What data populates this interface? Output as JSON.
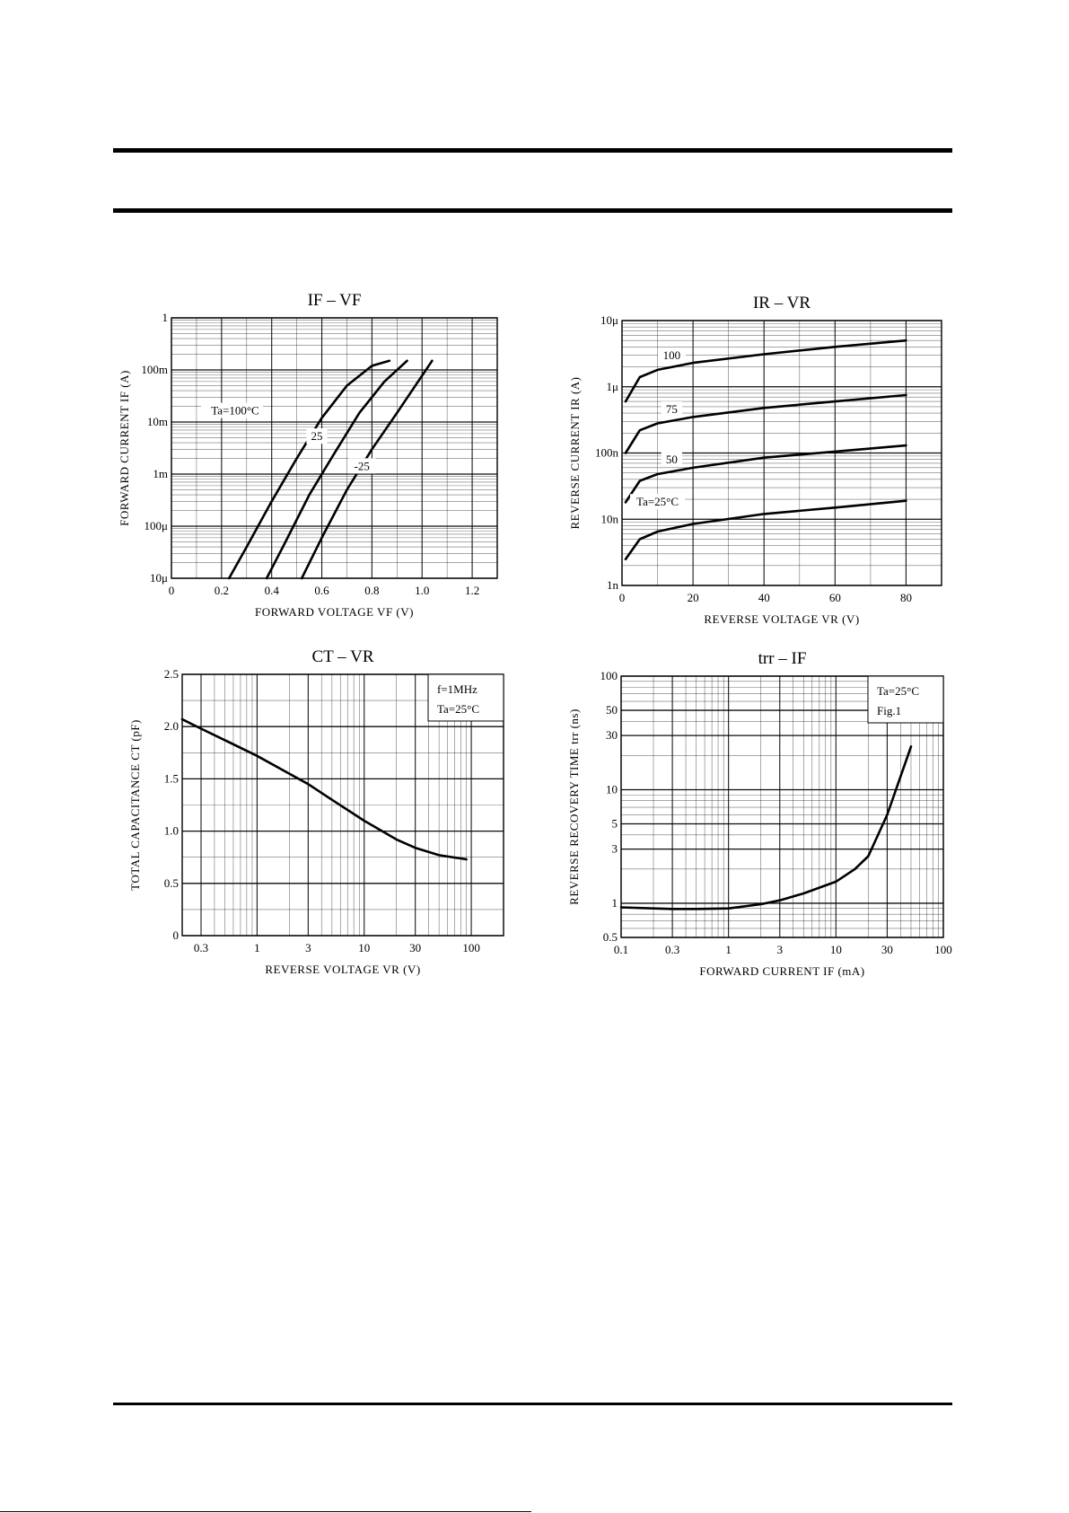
{
  "chart_data": [
    {
      "id": "if-vf",
      "type": "line",
      "title": "IF – VF",
      "xlabel": "FORWARD VOLTAGE VF (V)",
      "ylabel": "FORWARD CURRENT IF (A)",
      "xlim": [
        0,
        1.3
      ],
      "ylim": [
        1e-05,
        1
      ],
      "xscale": "linear",
      "yscale": "log",
      "x_ticks": [
        0,
        0.2,
        0.4,
        0.6,
        0.8,
        1.0,
        1.2
      ],
      "x_tick_labels": [
        "0",
        "0.2",
        "0.4",
        "0.6",
        "0.8",
        "1.0",
        "1.2"
      ],
      "y_ticks": [
        1e-05,
        0.0001,
        0.001,
        0.01,
        0.1,
        1
      ],
      "y_tick_labels": [
        "10μ",
        "100μ",
        "1m",
        "10m",
        "100m",
        "1"
      ],
      "grid": true,
      "series": [
        {
          "name": "Ta=100°C",
          "x": [
            0.23,
            0.3,
            0.4,
            0.5,
            0.6,
            0.7,
            0.8,
            0.87
          ],
          "y": [
            1e-05,
            4e-05,
            0.0003,
            0.002,
            0.012,
            0.05,
            0.12,
            0.15
          ]
        },
        {
          "name": "25",
          "x": [
            0.38,
            0.45,
            0.55,
            0.65,
            0.75,
            0.85,
            0.94
          ],
          "y": [
            1e-05,
            4.5e-05,
            0.0004,
            0.0025,
            0.015,
            0.06,
            0.15
          ]
        },
        {
          "name": "-25",
          "x": [
            0.52,
            0.6,
            0.7,
            0.8,
            0.9,
            1.04
          ],
          "y": [
            1e-05,
            6e-05,
            0.0005,
            0.003,
            0.015,
            0.15
          ]
        }
      ]
    },
    {
      "id": "ir-vr",
      "type": "line",
      "title": "IR – VR",
      "xlabel": "REVERSE VOLTAGE VR (V)",
      "ylabel": "REVERSE CURRENT IR (A)",
      "xlim": [
        0,
        90
      ],
      "ylim": [
        1e-09,
        1e-05
      ],
      "xscale": "linear",
      "yscale": "log",
      "x_ticks": [
        0,
        20,
        40,
        60,
        80
      ],
      "x_tick_labels": [
        "0",
        "20",
        "40",
        "60",
        "80"
      ],
      "y_ticks": [
        1e-09,
        1e-08,
        1e-07,
        1e-06,
        1e-05
      ],
      "y_tick_labels": [
        "1n",
        "10n",
        "100n",
        "1μ",
        "10μ"
      ],
      "grid": true,
      "series": [
        {
          "name": "100",
          "x": [
            1,
            5,
            10,
            20,
            40,
            60,
            80
          ],
          "y": [
            6e-07,
            1.4e-06,
            1.8e-06,
            2.3e-06,
            3.1e-06,
            4e-06,
            5e-06
          ]
        },
        {
          "name": "75",
          "x": [
            1,
            5,
            10,
            20,
            40,
            60,
            80
          ],
          "y": [
            1e-07,
            2.2e-07,
            2.8e-07,
            3.5e-07,
            4.8e-07,
            6e-07,
            7.5e-07
          ]
        },
        {
          "name": "50",
          "x": [
            1,
            5,
            10,
            20,
            40,
            60,
            80
          ],
          "y": [
            1.8e-08,
            3.8e-08,
            4.8e-08,
            6e-08,
            8.5e-08,
            1.05e-07,
            1.3e-07
          ]
        },
        {
          "name": "Ta=25°C",
          "x": [
            1,
            5,
            10,
            20,
            40,
            60,
            80
          ],
          "y": [
            2.5e-09,
            5e-09,
            6.5e-09,
            8.5e-09,
            1.2e-08,
            1.5e-08,
            1.9e-08
          ]
        }
      ]
    },
    {
      "id": "ct-vr",
      "type": "line",
      "title": "CT – VR",
      "xlabel": "REVERSE VOLTAGE VR (V)",
      "ylabel": "TOTAL CAPACITANCE CT (pF)",
      "xlim": [
        0.2,
        200
      ],
      "ylim": [
        0,
        2.5
      ],
      "xscale": "log",
      "yscale": "linear",
      "x_ticks": [
        0.3,
        1,
        3,
        10,
        30,
        100
      ],
      "x_tick_labels": [
        "0.3",
        "1",
        "3",
        "10",
        "30",
        "100"
      ],
      "y_ticks": [
        0,
        0.5,
        1.0,
        1.5,
        2.0,
        2.5
      ],
      "y_tick_labels": [
        "0",
        "0.5",
        "1.0",
        "1.5",
        "2.0",
        "2.5"
      ],
      "grid": true,
      "annotations": [
        "f=1MHz",
        "Ta=25°C"
      ],
      "series": [
        {
          "name": "",
          "x": [
            0.2,
            0.3,
            0.5,
            1,
            2,
            3,
            5,
            10,
            20,
            30,
            50,
            90
          ],
          "y": [
            2.07,
            1.98,
            1.87,
            1.72,
            1.55,
            1.45,
            1.3,
            1.1,
            0.92,
            0.84,
            0.77,
            0.73
          ]
        }
      ]
    },
    {
      "id": "trr-if",
      "type": "line",
      "title": "trr – IF",
      "xlabel": "FORWARD CURRENT IF (mA)",
      "ylabel": "REVERSE RECOVERY TIME trr (ns)",
      "xlim": [
        0.1,
        100
      ],
      "ylim": [
        0.5,
        100
      ],
      "xscale": "log",
      "yscale": "log",
      "x_ticks": [
        0.1,
        0.3,
        1,
        3,
        10,
        30,
        100
      ],
      "x_tick_labels": [
        "0.1",
        "0.3",
        "1",
        "3",
        "10",
        "30",
        "100"
      ],
      "y_ticks": [
        0.5,
        1,
        3,
        5,
        10,
        30,
        50,
        100
      ],
      "y_tick_labels": [
        "0.5",
        "1",
        "3",
        "5",
        "10",
        "30",
        "50",
        "100"
      ],
      "grid": true,
      "annotations": [
        "Ta=25°C",
        "Fig.1"
      ],
      "series": [
        {
          "name": "",
          "x": [
            0.1,
            0.2,
            0.3,
            0.5,
            1,
            2,
            3,
            5,
            10,
            15,
            20,
            30,
            50
          ],
          "y": [
            0.92,
            0.9,
            0.89,
            0.89,
            0.9,
            0.98,
            1.06,
            1.22,
            1.55,
            2.0,
            2.6,
            6.0,
            24
          ]
        }
      ]
    }
  ]
}
